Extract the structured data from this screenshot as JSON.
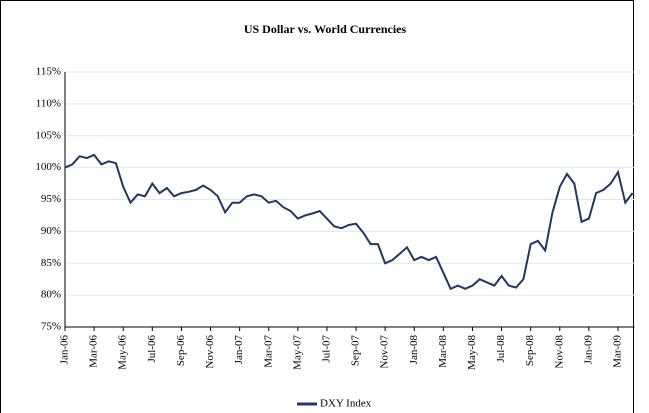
{
  "chart_data": {
    "type": "line",
    "title": "US Dollar vs. World Currencies",
    "categories": [
      "Jan-06",
      null,
      null,
      null,
      "Mar-06",
      null,
      null,
      null,
      "May-06",
      null,
      null,
      null,
      "Jul-06",
      null,
      null,
      null,
      "Sep-06",
      null,
      null,
      null,
      "Nov-06",
      null,
      null,
      null,
      "Jan-07",
      null,
      null,
      null,
      "Mar-07",
      null,
      null,
      null,
      "May-07",
      null,
      null,
      null,
      "Jul-07",
      null,
      null,
      null,
      "Sep-07",
      null,
      null,
      null,
      "Nov-07",
      null,
      null,
      null,
      "Jan-08",
      null,
      null,
      null,
      "Mar-08",
      null,
      null,
      null,
      "May-08",
      null,
      null,
      null,
      "Jul-08",
      null,
      null,
      null,
      "Sep-08",
      null,
      null,
      null,
      "Nov-08",
      null,
      null,
      null,
      "Jan-09",
      null,
      null,
      null,
      "Mar-09",
      null,
      null
    ],
    "series": [
      {
        "name": "DXY Index",
        "color": "#1f3864",
        "values": [
          100,
          100.5,
          101.8,
          101.5,
          102,
          100.5,
          101,
          100.7,
          97,
          94.5,
          95.8,
          95.5,
          97.5,
          96,
          96.8,
          95.5,
          96,
          96.2,
          96.5,
          97.2,
          96.5,
          95.5,
          93,
          94.5,
          94.5,
          95.5,
          95.8,
          95.5,
          94.5,
          94.8,
          93.8,
          93.2,
          92,
          92.5,
          92.8,
          93.2,
          92,
          90.8,
          90.5,
          91,
          91.2,
          89.8,
          88,
          88,
          85,
          85.5,
          86.5,
          87.5,
          85.5,
          86,
          85.5,
          86,
          83.5,
          81,
          81.5,
          81,
          81.5,
          82.5,
          82,
          81.5,
          83,
          81.5,
          81.2,
          82.5,
          88,
          88.5,
          87,
          93,
          97,
          99,
          97.5,
          91.5,
          92,
          96,
          96.5,
          97.5,
          99.3,
          94.5,
          96
        ]
      }
    ],
    "ylim": [
      75,
      115
    ],
    "yticks": [
      {
        "value": 75,
        "label": "75%"
      },
      {
        "value": 80,
        "label": "80%"
      },
      {
        "value": 85,
        "label": "85%"
      },
      {
        "value": 90,
        "label": "90%"
      },
      {
        "value": 95,
        "label": "95%"
      },
      {
        "value": 100,
        "label": "100%"
      },
      {
        "value": 105,
        "label": "105%"
      },
      {
        "value": 110,
        "label": "110%"
      },
      {
        "value": 115,
        "label": "115%"
      }
    ],
    "grid": true,
    "legend": "bottom"
  }
}
